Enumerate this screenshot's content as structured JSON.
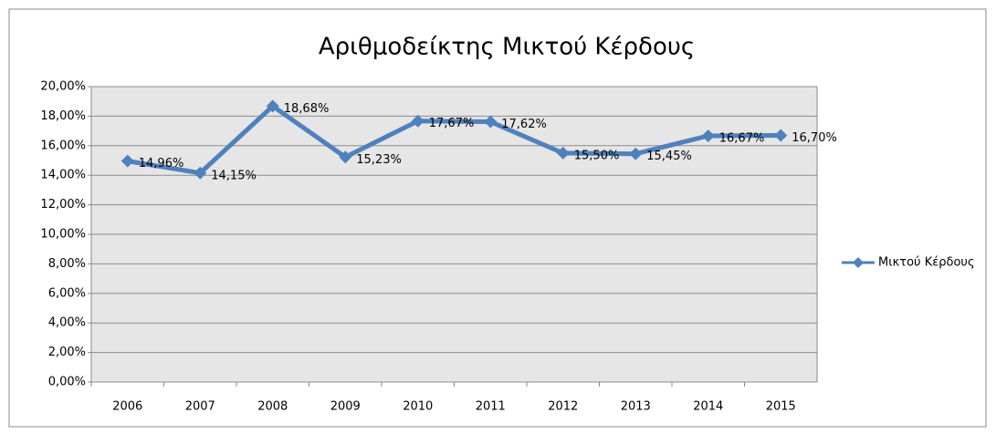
{
  "chart_data": {
    "type": "line",
    "title": "Αριθμοδείκτης Μικτού Κέρδους",
    "categories": [
      "2006",
      "2007",
      "2008",
      "2009",
      "2010",
      "2011",
      "2012",
      "2013",
      "2014",
      "2015"
    ],
    "series": [
      {
        "name": "Μικτού Κέρδους",
        "color": "#4f81bd",
        "values": [
          14.96,
          14.15,
          18.68,
          15.23,
          17.67,
          17.62,
          15.5,
          15.45,
          16.67,
          16.7
        ],
        "value_labels": [
          "14,96%",
          "14,15%",
          "18,68%",
          "15,23%",
          "17,67%",
          "17,62%",
          "15,50%",
          "15,45%",
          "16,67%",
          "16,70%"
        ]
      }
    ],
    "ylim": [
      0,
      20
    ],
    "yticks": [
      {
        "value": 0,
        "label": "0,00%"
      },
      {
        "value": 2,
        "label": "2,00%"
      },
      {
        "value": 4,
        "label": "4,00%"
      },
      {
        "value": 6,
        "label": "6,00%"
      },
      {
        "value": 8,
        "label": "8,00%"
      },
      {
        "value": 10,
        "label": "10,00%"
      },
      {
        "value": 12,
        "label": "12,00%"
      },
      {
        "value": 14,
        "label": "14,00%"
      },
      {
        "value": 16,
        "label": "16,00%"
      },
      {
        "value": 18,
        "label": "18,00%"
      },
      {
        "value": 20,
        "label": "20,00%"
      }
    ],
    "grid": true,
    "legend": "right"
  }
}
